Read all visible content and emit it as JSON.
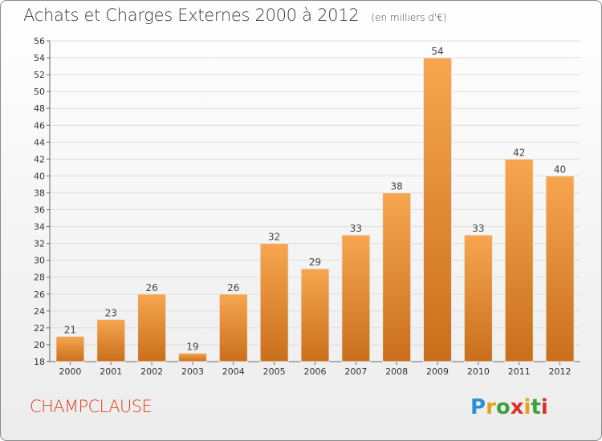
{
  "header": {
    "title": "Achats et Charges Externes 2000 à 2012",
    "unit": "(en milliers d'€)"
  },
  "footer": {
    "commune": "CHAMPCLAUSE",
    "logo_text": "Proxiti"
  },
  "colors": {
    "bar_light": "#f7a64f",
    "bar_dark": "#c96f1c",
    "commune_text": "#e0401e",
    "grid": "#dddddd"
  },
  "chart_data": {
    "type": "bar",
    "categories": [
      "2000",
      "2001",
      "2002",
      "2003",
      "2004",
      "2005",
      "2006",
      "2007",
      "2008",
      "2009",
      "2010",
      "2011",
      "2012"
    ],
    "values": [
      21,
      23,
      26,
      19,
      26,
      32,
      29,
      33,
      38,
      54,
      33,
      42,
      40
    ],
    "ylim": [
      18,
      56
    ],
    "yticks": [
      18,
      20,
      22,
      24,
      26,
      28,
      30,
      32,
      34,
      36,
      38,
      40,
      42,
      44,
      46,
      48,
      50,
      52,
      54,
      56
    ],
    "grid": true,
    "legend": "none"
  }
}
